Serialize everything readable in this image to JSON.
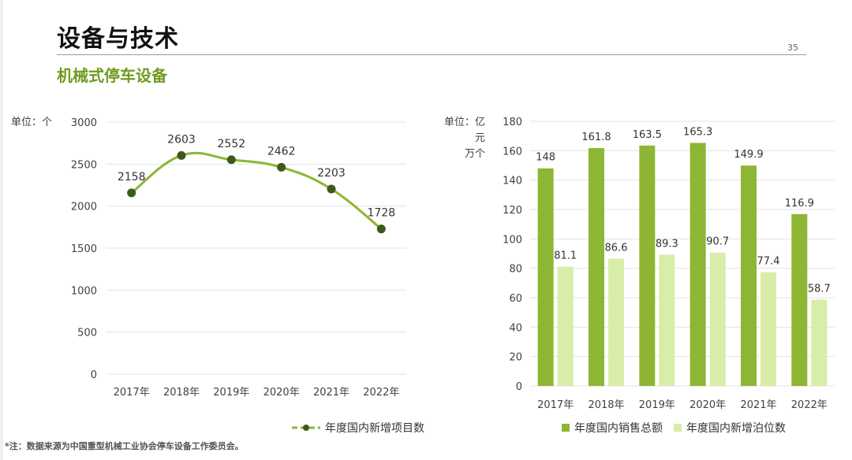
{
  "header": {
    "title": "设备与技术",
    "page_number": "35",
    "subtitle": "机械式停车设备"
  },
  "footnote": "*注：数据来源为中国重型机械工业协会停车设备工作委员会。",
  "colors": {
    "title_green": "#6f9b1f",
    "line_series": "#8db634",
    "line_marker": "#3d5a1a",
    "bar_dark": "#8db634",
    "bar_light": "#d8eda8"
  },
  "chart_data": [
    {
      "type": "line",
      "unit_label": "单位：个",
      "categories": [
        "2017年",
        "2018年",
        "2019年",
        "2020年",
        "2021年",
        "2022年"
      ],
      "series": [
        {
          "name": "年度国内新增项目数",
          "values": [
            2158,
            2603,
            2552,
            2462,
            2203,
            1728
          ]
        }
      ],
      "ylim": [
        0,
        3000
      ],
      "yticks": [
        0,
        500,
        1000,
        1500,
        2000,
        2500,
        3000
      ],
      "grid": "horizontal",
      "legend": "bottom",
      "data_labels": true,
      "smooth": true
    },
    {
      "type": "bar",
      "unit_label": [
        "单位：亿元",
        "万个"
      ],
      "categories": [
        "2017年",
        "2018年",
        "2019年",
        "2020年",
        "2021年",
        "2022年"
      ],
      "series": [
        {
          "name": "年度国内销售总额",
          "values": [
            148,
            161.8,
            163.5,
            165.3,
            149.9,
            116.9
          ]
        },
        {
          "name": "年度国内新增泊位数",
          "values": [
            81.1,
            86.6,
            89.3,
            90.7,
            77.4,
            58.7
          ]
        }
      ],
      "ylim": [
        0,
        180
      ],
      "yticks": [
        0,
        20,
        40,
        60,
        80,
        100,
        120,
        140,
        160,
        180
      ],
      "grid": "horizontal",
      "legend": "bottom",
      "data_labels": true
    }
  ]
}
